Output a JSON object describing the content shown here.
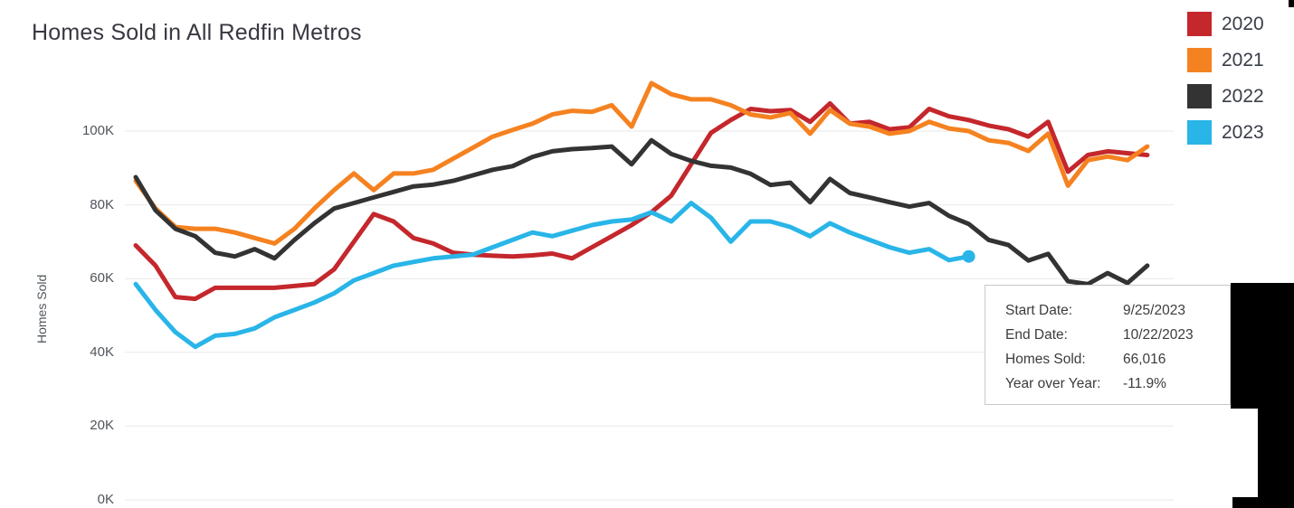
{
  "title": {
    "text": "Homes Sold in  All Redfin Metros"
  },
  "y_axis": {
    "title": "Homes Sold"
  },
  "legend": {
    "items": [
      {
        "label": "2020",
        "color": "#c4272c"
      },
      {
        "label": "2021",
        "color": "#f58220"
      },
      {
        "label": "2022",
        "color": "#333333"
      },
      {
        "label": "2023",
        "color": "#29b5e8"
      }
    ]
  },
  "tooltip": {
    "rows": [
      {
        "label": "Start Date:",
        "value": "9/25/2023"
      },
      {
        "label": "End Date:",
        "value": "10/22/2023"
      },
      {
        "label": "Homes Sold:",
        "value": "66,016"
      },
      {
        "label": "Year over Year:",
        "value": "-11.9%"
      }
    ]
  },
  "chart_data": {
    "type": "line",
    "title": "Homes Sold in  All Redfin Metros",
    "xlabel": "",
    "ylabel": "Homes Sold",
    "x_unit": "week_index",
    "values_unit": "thousands_of_homes_sold",
    "ylim_k": [
      0,
      117
    ],
    "grid": "horizontal",
    "legend_position": "top-right",
    "x_tick_labels_visible": false,
    "yticks_k": [
      {
        "label": "0K",
        "value_k": 0
      },
      {
        "label": "20K",
        "value_k": 20
      },
      {
        "label": "40K",
        "value_k": 40
      },
      {
        "label": "60K",
        "value_k": 60
      },
      {
        "label": "80K",
        "value_k": 80
      },
      {
        "label": "100K",
        "value_k": 100
      }
    ],
    "series": [
      {
        "name": "2020",
        "color": "#c4272c",
        "values_k": [
          69,
          63.5,
          55,
          54.5,
          57.5,
          57.5,
          57.5,
          57.5,
          58,
          58.5,
          62.5,
          70,
          77.5,
          75.5,
          71,
          69.5,
          67,
          66.5,
          66.2,
          66,
          66.3,
          66.8,
          65.5,
          68.5,
          71.5,
          74.5,
          78,
          82.5,
          91,
          99.5,
          103,
          106,
          105.4,
          105.7,
          102.5,
          107.5,
          102,
          102.5,
          100.5,
          101,
          106,
          104,
          103,
          101.5,
          100.5,
          98.5,
          102.5,
          89,
          93.5,
          94.5,
          94,
          93.5
        ]
      },
      {
        "name": "2021",
        "color": "#f58220",
        "values_k": [
          86.5,
          79,
          74,
          73.5,
          73.5,
          72.5,
          71,
          69.5,
          73.5,
          79,
          84,
          88.5,
          84,
          88.5,
          88.5,
          89.5,
          92.5,
          95.5,
          98.5,
          100.3,
          102,
          104.5,
          105.5,
          105.2,
          107,
          101.2,
          113,
          110,
          108.6,
          108.6,
          107,
          104.5,
          103.7,
          104.9,
          99.3,
          105.7,
          102,
          101.2,
          99.3,
          100,
          102.5,
          100.7,
          100,
          97.5,
          96.8,
          94.6,
          99.3,
          85.2,
          92.1,
          93.1,
          92.1,
          95.8
        ]
      },
      {
        "name": "2022",
        "color": "#333333",
        "values_k": [
          87.5,
          78.5,
          73.5,
          71.5,
          67,
          66,
          68,
          65.5,
          70.5,
          75,
          79,
          80.5,
          82,
          83.5,
          85,
          85.5,
          86.5,
          88,
          89.5,
          90.5,
          93,
          94.5,
          95.1,
          95.4,
          95.8,
          91,
          97.5,
          93.8,
          91.9,
          90.6,
          90.1,
          88.4,
          85.4,
          86,
          80.7,
          87,
          83.2,
          82,
          80.7,
          79.5,
          80.5,
          77,
          74.8,
          70.5,
          69.1,
          64.9,
          66.7,
          59.3,
          58.5,
          61.5,
          58.8,
          63.5
        ]
      },
      {
        "name": "2023",
        "color": "#29b5e8",
        "end_marker": true,
        "values_k": [
          58.5,
          51.5,
          45.5,
          41.5,
          44.5,
          45,
          46.5,
          49.5,
          51.5,
          53.5,
          56,
          59.5,
          61.5,
          63.5,
          64.5,
          65.5,
          66,
          66.5,
          68.5,
          70.5,
          72.5,
          71.5,
          73,
          74.5,
          75.5,
          76,
          78,
          75.5,
          80.5,
          76.5,
          70,
          75.5,
          75.5,
          74,
          71.5,
          75,
          72.5,
          70.5,
          68.5,
          67,
          68,
          65,
          66
        ]
      }
    ],
    "selected_point": {
      "series": "2023",
      "start_date": "9/25/2023",
      "end_date": "10/22/2023",
      "homes_sold": "66,016",
      "year_over_year": "-11.9%"
    }
  }
}
